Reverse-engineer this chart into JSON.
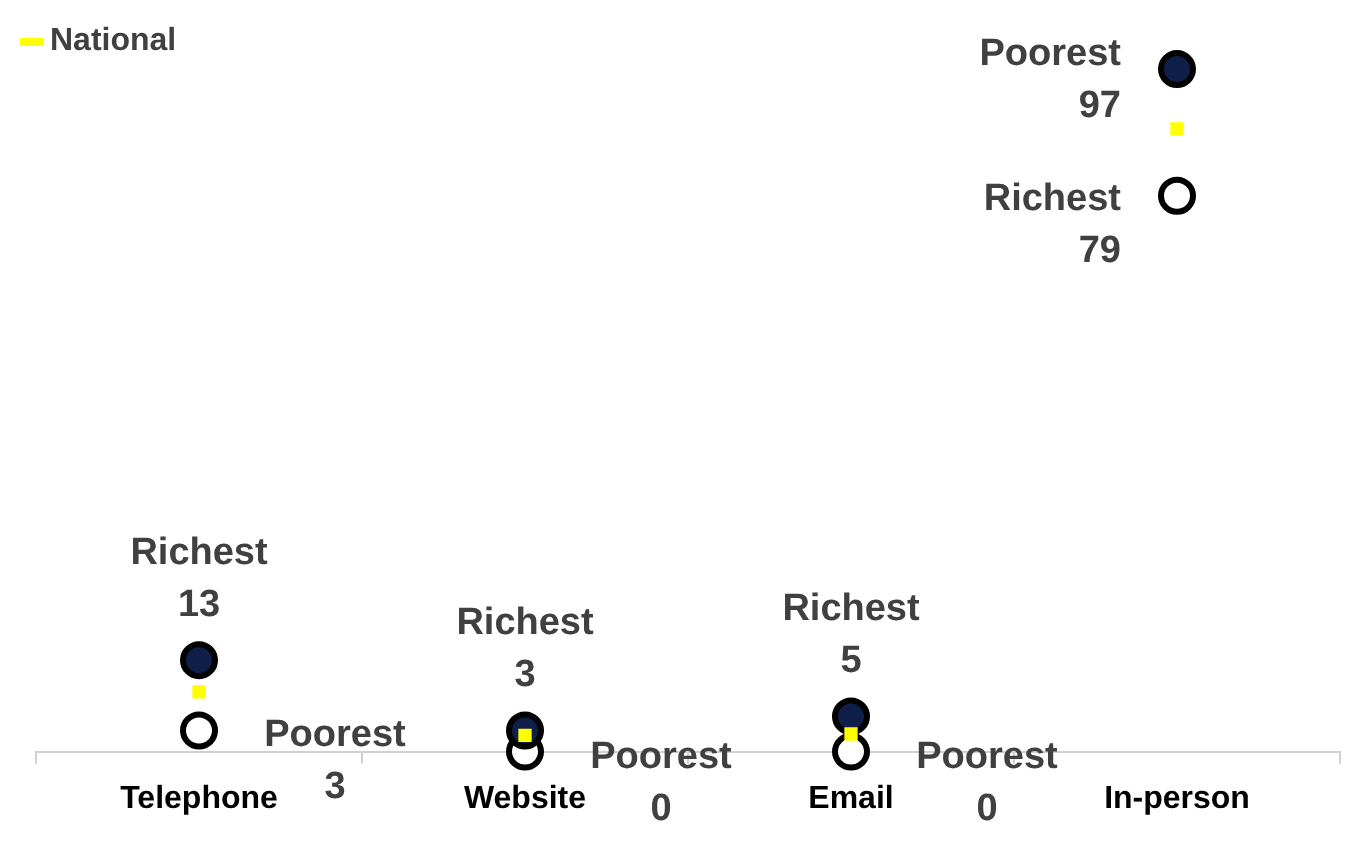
{
  "chart_data": {
    "type": "scatter",
    "categories": [
      "Telephone",
      "Website",
      "Email",
      "In-person"
    ],
    "tick_labels": "x",
    "grid": false,
    "legend": "top left",
    "series": [
      {
        "color": "#0f1f4a",
        "marker": "circle",
        "values": [
          13,
          3,
          5,
          97
        ],
        "value_labels": [
          "Richest 13",
          "Richest 3",
          "Richest 5",
          "Poorest 97"
        ]
      },
      {
        "color": "#ffffff",
        "marker": "circle",
        "values": [
          3,
          0,
          0,
          79
        ],
        "value_labels": [
          "Poorest 3",
          "Poorest 0",
          "Poorest 0",
          "Richest 79"
        ]
      },
      {
        "name": "National",
        "color": "#ffff00",
        "marker": "square",
        "values": [
          8.5,
          2.3,
          2.5,
          88.5
        ]
      }
    ]
  }
}
